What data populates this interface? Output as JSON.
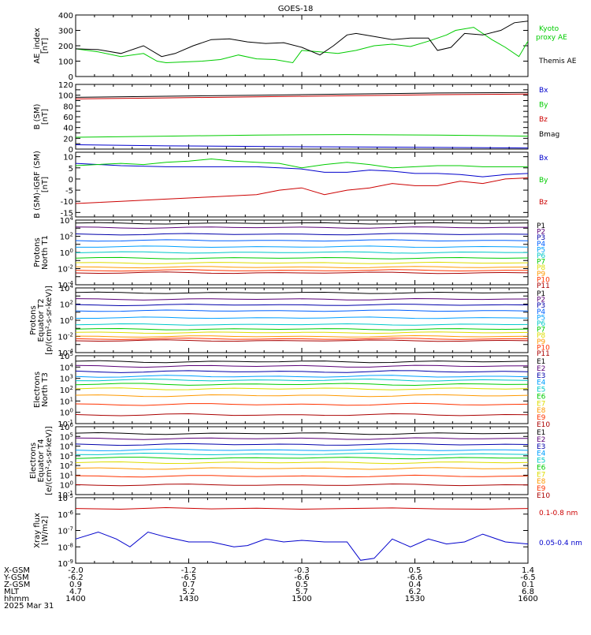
{
  "title": "GOES-18",
  "colors": {
    "black": "#000000",
    "green": "#00cc00",
    "blue": "#0000cc",
    "red": "#cc0000"
  },
  "chart_data": [
    {
      "type": "line",
      "id": "ae",
      "ylabel": [
        "AE_index",
        "[nT]"
      ],
      "ylim": [
        0,
        400
      ],
      "yticks": [
        0,
        100,
        200,
        300,
        400
      ],
      "series": [
        {
          "name": "Kyoto proxy AE",
          "label_lines": [
            "Kyoto",
            "proxy AE"
          ],
          "color": "#00cc00",
          "x": [
            0,
            0.05,
            0.1,
            0.15,
            0.18,
            0.2,
            0.24,
            0.28,
            0.32,
            0.36,
            0.4,
            0.44,
            0.48,
            0.5,
            0.54,
            0.58,
            0.62,
            0.66,
            0.7,
            0.74,
            0.78,
            0.82,
            0.84,
            0.88,
            0.92,
            0.95,
            0.98,
            1
          ],
          "values": [
            180,
            160,
            130,
            150,
            100,
            90,
            95,
            100,
            110,
            140,
            115,
            110,
            90,
            170,
            160,
            150,
            170,
            200,
            210,
            195,
            230,
            270,
            300,
            320,
            240,
            190,
            130,
            230
          ]
        },
        {
          "name": "Themis AE",
          "label_lines": [
            "Themis AE"
          ],
          "color": "#000000",
          "x": [
            0,
            0.05,
            0.1,
            0.15,
            0.19,
            0.22,
            0.26,
            0.3,
            0.34,
            0.38,
            0.42,
            0.46,
            0.5,
            0.54,
            0.57,
            0.6,
            0.62,
            0.66,
            0.7,
            0.74,
            0.78,
            0.8,
            0.83,
            0.86,
            0.9,
            0.94,
            0.97,
            1
          ],
          "values": [
            180,
            175,
            150,
            200,
            130,
            150,
            200,
            240,
            245,
            225,
            215,
            220,
            190,
            140,
            200,
            270,
            280,
            260,
            240,
            250,
            250,
            170,
            190,
            280,
            270,
            300,
            350,
            360
          ]
        }
      ]
    },
    {
      "type": "line",
      "id": "bsm",
      "ylabel": [
        "B (SM)",
        "[nT]"
      ],
      "ylim": [
        0,
        120
      ],
      "yticks": [
        0,
        10,
        20,
        30,
        40,
        50,
        60,
        70,
        80,
        90,
        100,
        110,
        120
      ],
      "tick_labels": [
        0,
        20,
        40,
        60,
        80,
        100,
        120
      ],
      "series": [
        {
          "name": "Bx",
          "color": "#0000cc",
          "x": [
            0,
            0.2,
            0.4,
            0.6,
            0.8,
            1
          ],
          "values": [
            8,
            6,
            5,
            4,
            3,
            2
          ]
        },
        {
          "name": "By",
          "color": "#00cc00",
          "x": [
            0,
            0.2,
            0.4,
            0.6,
            0.8,
            1
          ],
          "values": [
            22,
            24,
            26,
            27,
            26,
            24
          ]
        },
        {
          "name": "Bz",
          "color": "#cc0000",
          "x": [
            0,
            0.2,
            0.4,
            0.6,
            0.8,
            1
          ],
          "values": [
            93,
            95,
            97,
            99,
            101,
            102
          ]
        },
        {
          "name": "Bmag",
          "color": "#000000",
          "x": [
            0,
            0.2,
            0.4,
            0.6,
            0.8,
            1
          ],
          "values": [
            96,
            98,
            100,
            102,
            104,
            105
          ]
        }
      ]
    },
    {
      "type": "line",
      "id": "bigrf",
      "ylabel": [
        "B (SM)-IGRF (SM)",
        "[nT]"
      ],
      "ylim": [
        -17,
        12
      ],
      "yticks": [
        -15,
        -10,
        -5,
        0,
        5,
        10
      ],
      "series": [
        {
          "name": "Bx",
          "color": "#0000cc",
          "x": [
            0,
            0.1,
            0.2,
            0.3,
            0.4,
            0.45,
            0.5,
            0.55,
            0.6,
            0.65,
            0.7,
            0.75,
            0.8,
            0.85,
            0.9,
            0.95,
            1
          ],
          "values": [
            7,
            6,
            5.5,
            5.5,
            5.5,
            5,
            4.5,
            3,
            3,
            4,
            3.5,
            2.5,
            2.5,
            2,
            1,
            2,
            2.5
          ]
        },
        {
          "name": "By",
          "color": "#00cc00",
          "x": [
            0,
            0.1,
            0.15,
            0.2,
            0.25,
            0.3,
            0.35,
            0.4,
            0.45,
            0.5,
            0.55,
            0.6,
            0.65,
            0.7,
            0.75,
            0.8,
            0.85,
            0.9,
            1
          ],
          "values": [
            6,
            7,
            6.5,
            7.5,
            8,
            9,
            8,
            7.5,
            7,
            5,
            6.5,
            7.5,
            6.5,
            5,
            5.5,
            6,
            6,
            5.5,
            5.5
          ]
        },
        {
          "name": "Bz",
          "color": "#cc0000",
          "x": [
            0,
            0.1,
            0.2,
            0.3,
            0.4,
            0.45,
            0.5,
            0.55,
            0.6,
            0.65,
            0.7,
            0.75,
            0.8,
            0.85,
            0.9,
            0.95,
            1
          ],
          "values": [
            -11,
            -10,
            -9,
            -8,
            -7,
            -5,
            -4,
            -7,
            -5,
            -4,
            -2,
            -3,
            -3,
            -1,
            -2,
            0,
            0.5
          ]
        }
      ]
    },
    {
      "type": "line",
      "id": "protons_t1",
      "ylabel": [
        "Protons",
        "North T1"
      ],
      "yscale": "log",
      "ylim": [
        0.0001,
        10000
      ],
      "ytick_exponents": [
        -4,
        -2,
        0,
        2,
        4
      ],
      "series": [
        {
          "name": "P1",
          "color": "#000000",
          "values": [
            4000
          ]
        },
        {
          "name": "P2",
          "color": "#5a0078",
          "values": [
            1200
          ]
        },
        {
          "name": "P3",
          "color": "#0000aa",
          "values": [
            180
          ]
        },
        {
          "name": "P4",
          "color": "#0060ff",
          "values": [
            30
          ]
        },
        {
          "name": "P5",
          "color": "#00a0ff",
          "values": [
            5
          ]
        },
        {
          "name": "P6",
          "color": "#00c8c8",
          "values": [
            1
          ]
        },
        {
          "name": "P7",
          "color": "#00cc00",
          "values": [
            0.2
          ]
        },
        {
          "name": "P8",
          "color": "#dddd00",
          "values": [
            0.05
          ]
        },
        {
          "name": "P9",
          "color": "#ff9900",
          "values": [
            0.015
          ]
        },
        {
          "name": "P10",
          "color": "#ff3300",
          "values": [
            0.006
          ]
        },
        {
          "name": "P11",
          "color": "#aa0000",
          "values": [
            0.003
          ]
        }
      ]
    },
    {
      "type": "line",
      "id": "protons_t2",
      "ylabel": [
        "Protons",
        "Equator T2",
        "[p/(cm²-s-sr-keV)]"
      ],
      "yscale": "log",
      "ylim": [
        0.0001,
        10000
      ],
      "ytick_exponents": [
        -4,
        -2,
        0,
        2,
        4
      ],
      "series": [
        {
          "name": "P1",
          "color": "#000000",
          "values": [
            2500
          ]
        },
        {
          "name": "P2",
          "color": "#5a0078",
          "values": [
            400
          ]
        },
        {
          "name": "P3",
          "color": "#0000aa",
          "values": [
            80
          ]
        },
        {
          "name": "P4",
          "color": "#0060ff",
          "values": [
            15
          ]
        },
        {
          "name": "P5",
          "color": "#00a0ff",
          "values": [
            2
          ]
        },
        {
          "name": "P6",
          "color": "#00c8c8",
          "values": [
            0.3
          ]
        },
        {
          "name": "P7",
          "color": "#00cc00",
          "values": [
            0.08
          ]
        },
        {
          "name": "P8",
          "color": "#dddd00",
          "values": [
            0.03
          ]
        },
        {
          "name": "P9",
          "color": "#ff9900",
          "values": [
            0.01
          ]
        },
        {
          "name": "P10",
          "color": "#ff3300",
          "values": [
            0.005
          ]
        },
        {
          "name": "P11",
          "color": "#aa0000",
          "values": [
            0.003
          ]
        }
      ]
    },
    {
      "type": "line",
      "id": "electrons_t3",
      "ylabel": [
        "Electrons",
        "North T3"
      ],
      "yscale": "log",
      "ylim": [
        0.1,
        100000
      ],
      "ytick_exponents": [
        -1,
        0,
        1,
        2,
        3,
        4,
        5
      ],
      "series": [
        {
          "name": "E1",
          "color": "#000000",
          "values": [
            30000
          ]
        },
        {
          "name": "E2",
          "color": "#5a0078",
          "values": [
            12000
          ]
        },
        {
          "name": "E3",
          "color": "#0000aa",
          "values": [
            4000
          ]
        },
        {
          "name": "E4",
          "color": "#00a0ff",
          "values": [
            1500
          ]
        },
        {
          "name": "E5",
          "color": "#00c8c8",
          "values": [
            700
          ]
        },
        {
          "name": "E6",
          "color": "#00cc00",
          "values": [
            300
          ]
        },
        {
          "name": "E7",
          "color": "#dddd00",
          "values": [
            120
          ]
        },
        {
          "name": "E8",
          "color": "#ff9900",
          "values": [
            30
          ]
        },
        {
          "name": "E9",
          "color": "#ff3300",
          "values": [
            5
          ]
        },
        {
          "name": "E10",
          "color": "#aa0000",
          "values": [
            0.6
          ]
        }
      ]
    },
    {
      "type": "line",
      "id": "electrons_t4",
      "ylabel": [
        "Electrons",
        "Equator T4",
        "[e/(cm²-s-sr-keV)]"
      ],
      "yscale": "log",
      "ylim": [
        0.1,
        1000000
      ],
      "ytick_exponents": [
        -1,
        0,
        1,
        2,
        3,
        4,
        5,
        6
      ],
      "series": [
        {
          "name": "E1",
          "color": "#000000",
          "values": [
            200000
          ]
        },
        {
          "name": "E2",
          "color": "#5a0078",
          "values": [
            60000
          ]
        },
        {
          "name": "E3",
          "color": "#0000aa",
          "values": [
            15000
          ]
        },
        {
          "name": "E4",
          "color": "#00a0ff",
          "values": [
            4000
          ]
        },
        {
          "name": "E5",
          "color": "#00c8c8",
          "values": [
            1500
          ]
        },
        {
          "name": "E6",
          "color": "#00cc00",
          "values": [
            600
          ]
        },
        {
          "name": "E7",
          "color": "#dddd00",
          "values": [
            200
          ]
        },
        {
          "name": "E8",
          "color": "#ff9900",
          "values": [
            50
          ]
        },
        {
          "name": "E9",
          "color": "#ff3300",
          "values": [
            8
          ]
        },
        {
          "name": "E10",
          "color": "#aa0000",
          "values": [
            1
          ]
        }
      ]
    },
    {
      "type": "line",
      "id": "xray",
      "ylabel": [
        "Xray flux",
        "[W/m2]"
      ],
      "yscale": "log",
      "ylim": [
        1e-09,
        1e-05
      ],
      "ytick_exponents": [
        -9,
        -8,
        -7,
        -6,
        -5
      ],
      "series": [
        {
          "name": "0.1-0.8 nm",
          "color": "#cc0000",
          "x": [
            0,
            0.1,
            0.2,
            0.3,
            0.4,
            0.5,
            0.6,
            0.7,
            0.8,
            0.9,
            1
          ],
          "values": [
            2.2e-06,
            2e-06,
            2.5e-06,
            2.1e-06,
            2.3e-06,
            2e-06,
            2.2e-06,
            2.4e-06,
            2.1e-06,
            2e-06,
            2.2e-06
          ]
        },
        {
          "name": "0.05-0.4 nm",
          "color": "#0000cc",
          "x": [
            0,
            0.05,
            0.09,
            0.12,
            0.16,
            0.2,
            0.25,
            0.3,
            0.35,
            0.38,
            0.42,
            0.46,
            0.5,
            0.55,
            0.6,
            0.63,
            0.66,
            0.7,
            0.74,
            0.78,
            0.82,
            0.86,
            0.9,
            0.95,
            1
          ],
          "values": [
            3e-08,
            8e-08,
            3e-08,
            1e-08,
            8e-08,
            4e-08,
            2e-08,
            2e-08,
            1e-08,
            1.2e-08,
            3e-08,
            2e-08,
            2.5e-08,
            2e-08,
            2e-08,
            1.5e-09,
            2e-09,
            3e-08,
            1e-08,
            3e-08,
            1.5e-08,
            2e-08,
            6e-08,
            2e-08,
            1.5e-08
          ]
        }
      ]
    }
  ],
  "x_axis": {
    "row_labels": [
      "X-GSM",
      "Y-GSM",
      "Z-GSM",
      "MLT",
      "hhmm"
    ],
    "columns": [
      [
        "-2.0",
        "-6.2",
        "0.9",
        "4.7",
        "1400"
      ],
      [
        "-1.2",
        "-6.5",
        "0.7",
        "5.2",
        "1430"
      ],
      [
        "-0.3",
        "-6.6",
        "0.5",
        "5.7",
        "1500"
      ],
      [
        "0.5",
        "-6.6",
        "0.4",
        "6.2",
        "1530"
      ],
      [
        "1.4",
        "-6.5",
        "0.1",
        "6.8",
        "1600"
      ]
    ],
    "date": "2025 Mar 31"
  }
}
